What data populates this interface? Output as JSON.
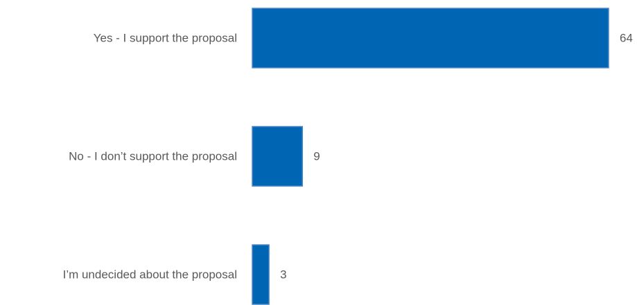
{
  "chart_data": {
    "type": "bar",
    "orientation": "horizontal",
    "categories": [
      "Yes - I support the proposal",
      "No - I don’t support the proposal",
      "I’m undecided about the proposal"
    ],
    "values": [
      64,
      9,
      3
    ],
    "data_labels": [
      "64",
      "9",
      "3"
    ],
    "title": "",
    "xlabel": "",
    "ylabel": "",
    "xlim": [
      0,
      64
    ],
    "grid": false,
    "legend": "none",
    "bar_color": "#0066B3",
    "bar_edge_color": "#4A86C8",
    "label_color": "#595959"
  }
}
